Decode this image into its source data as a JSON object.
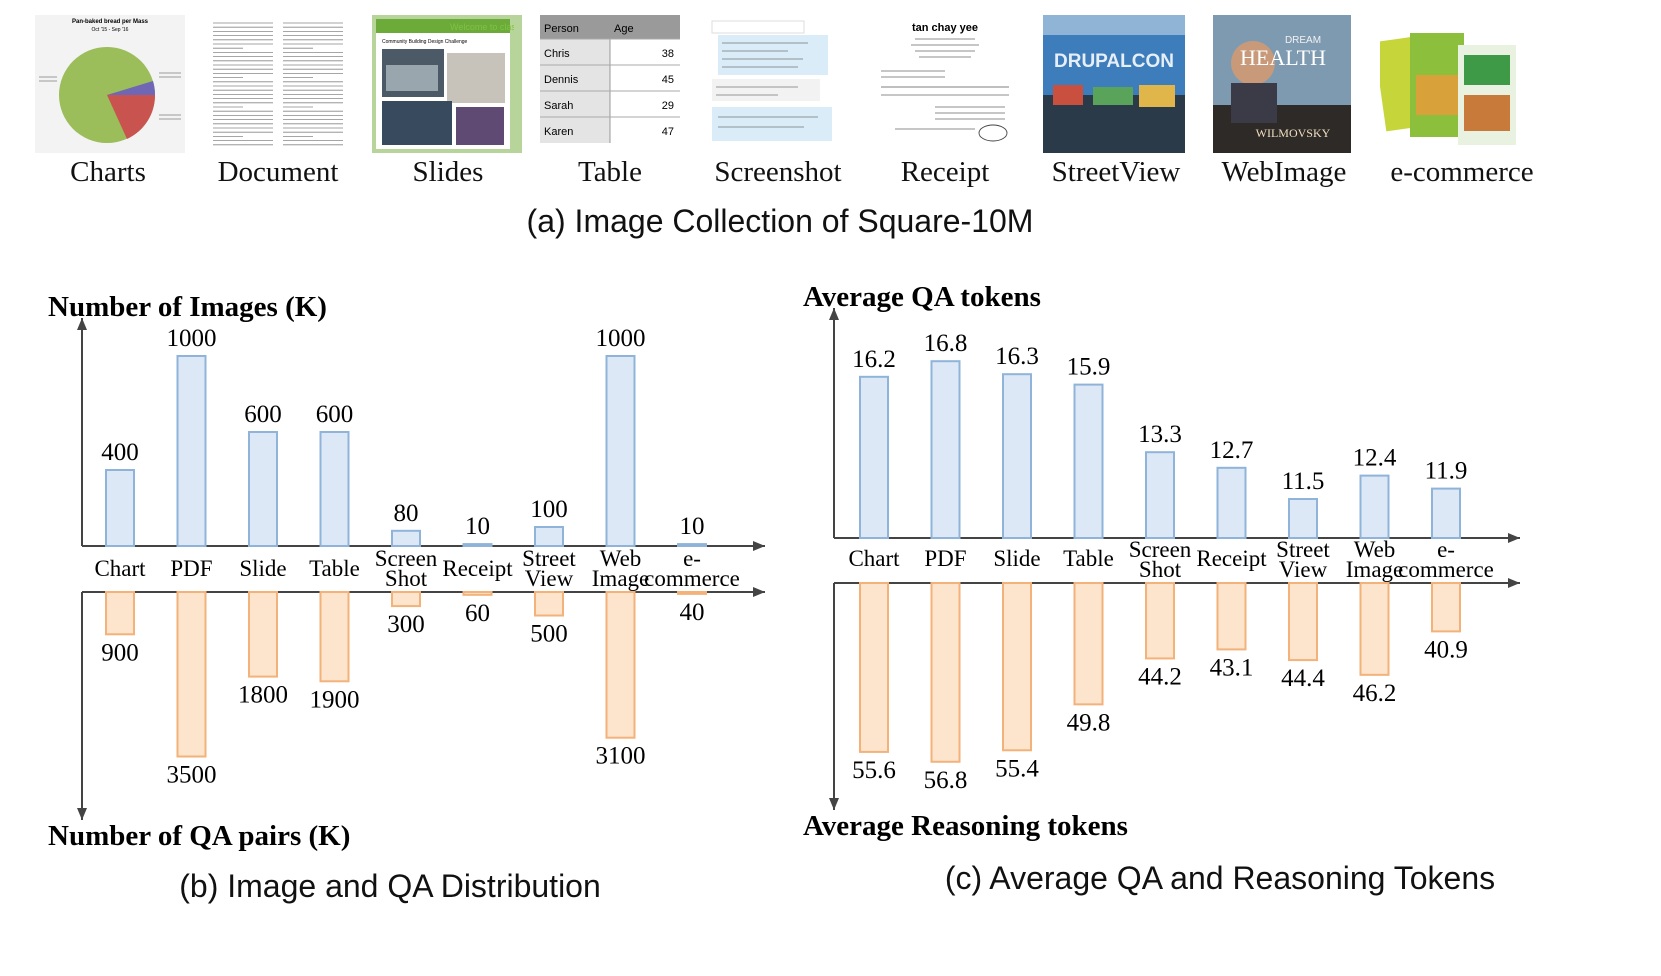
{
  "collection": {
    "caption": "(a) Image Collection of Square-10M",
    "items": [
      {
        "label": "Charts",
        "kind": "charts"
      },
      {
        "label": "Document",
        "kind": "document"
      },
      {
        "label": "Slides",
        "kind": "slides"
      },
      {
        "label": "Table",
        "kind": "table"
      },
      {
        "label": "Screenshot",
        "kind": "screenshot"
      },
      {
        "label": "Receipt",
        "kind": "receipt"
      },
      {
        "label": "StreetView",
        "kind": "streetview"
      },
      {
        "label": "WebImage",
        "kind": "webimage"
      },
      {
        "label": "e-commerce",
        "kind": "ecommerce"
      }
    ],
    "thumb_text": {
      "charts_title": "Pan-baked bread per Mass",
      "charts_subtitle": "Oct '15 - Sep '16",
      "table_headers": [
        "Person",
        "Age"
      ],
      "table_rows": [
        [
          "Chris",
          "38"
        ],
        [
          "Dennis",
          "45"
        ],
        [
          "Sarah",
          "29"
        ],
        [
          "Karen",
          "47"
        ]
      ],
      "slides_text": "Welcome to class",
      "slides_subtitle": "Community Building Design Challenge",
      "receipt_name": "tan chay yee",
      "street_sign": "DRUPALCON",
      "book_title_1": "DREAM",
      "book_title_2": "HEALTH",
      "book_author": "WILMOVSKY"
    }
  },
  "chart_data": [
    {
      "type": "bar",
      "caption": "(b) Image and QA Distribution",
      "categories": [
        [
          "Chart"
        ],
        [
          "PDF"
        ],
        [
          "Slide"
        ],
        [
          "Table"
        ],
        [
          "Screen",
          "Shot"
        ],
        [
          "Receipt"
        ],
        [
          "Street",
          "View"
        ],
        [
          "Web",
          "Image"
        ],
        [
          "e-",
          "commerce"
        ]
      ],
      "series": [
        {
          "name": "Number of Images (K)",
          "values": [
            400,
            1000,
            600,
            600,
            80,
            10,
            100,
            1000,
            10
          ],
          "direction": "up",
          "color": "#dce8f5",
          "stroke": "#8fb3d9"
        },
        {
          "name": "Number of QA pairs (K)",
          "values": [
            900,
            3500,
            1800,
            1900,
            300,
            60,
            500,
            3100,
            40
          ],
          "direction": "down",
          "color": "#fde4cc",
          "stroke": "#f2b27a"
        }
      ]
    },
    {
      "type": "bar",
      "caption": "(c) Average QA and Reasoning Tokens",
      "categories": [
        [
          "Chart"
        ],
        [
          "PDF"
        ],
        [
          "Slide"
        ],
        [
          "Table"
        ],
        [
          "Screen",
          "Shot"
        ],
        [
          "Receipt"
        ],
        [
          "Street",
          "View"
        ],
        [
          "Web",
          "Image"
        ],
        [
          "e-",
          "commerce"
        ]
      ],
      "series": [
        {
          "name": "Average QA tokens",
          "values": [
            16.2,
            16.8,
            16.3,
            15.9,
            13.3,
            12.7,
            11.5,
            12.4,
            11.9
          ],
          "direction": "up",
          "color": "#dce8f5",
          "stroke": "#8fb3d9"
        },
        {
          "name": "Average Reasoning tokens",
          "values": [
            55.6,
            56.8,
            55.4,
            49.8,
            44.2,
            43.1,
            44.4,
            46.2,
            40.9
          ],
          "direction": "down",
          "color": "#fde4cc",
          "stroke": "#f2b27a"
        }
      ]
    }
  ]
}
